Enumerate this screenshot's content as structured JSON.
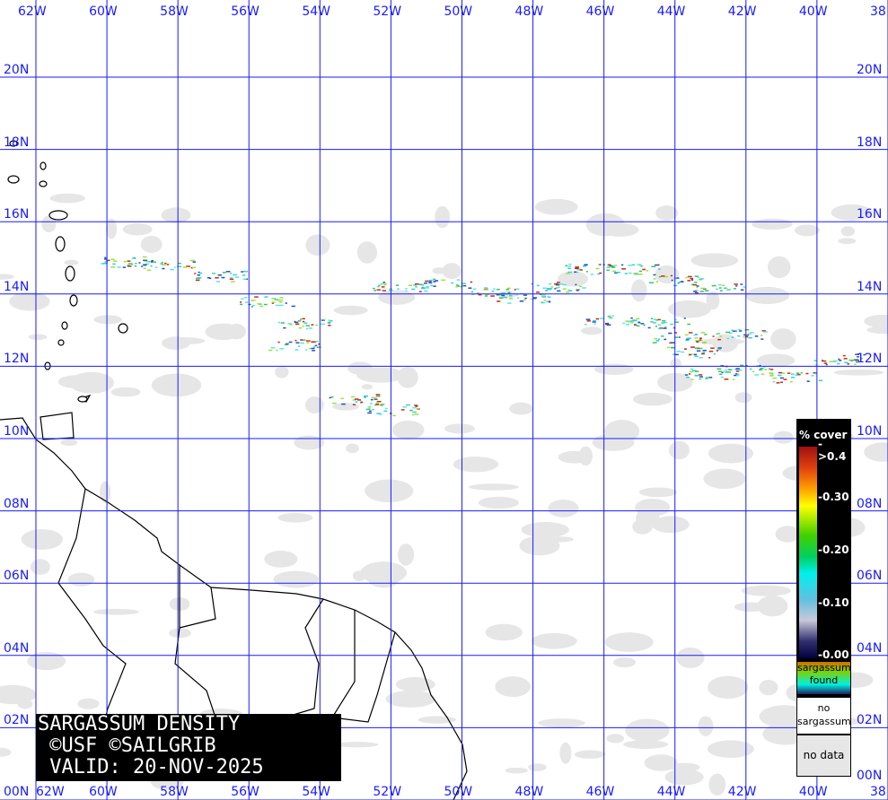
{
  "map": {
    "lon_labels": [
      "62W",
      "60W",
      "58W",
      "56W",
      "54W",
      "52W",
      "50W",
      "48W",
      "46W",
      "44W",
      "42W",
      "40W",
      "38"
    ],
    "lat_labels": [
      "20N",
      "18N",
      "16N",
      "14N",
      "12N",
      "10N",
      "08N",
      "06N",
      "04N",
      "02N",
      "00N"
    ],
    "lon_range": [
      -62,
      -38
    ],
    "lat_range": [
      0,
      20
    ],
    "grid_color": "#1a1aff",
    "sargassum_patches": [
      {
        "lat": 14.9,
        "lon": -59.5
      },
      {
        "lat": 14.8,
        "lon": -58.3
      },
      {
        "lat": 14.5,
        "lon": -56.8
      },
      {
        "lat": 13.8,
        "lon": -55.5
      },
      {
        "lat": 13.2,
        "lon": -54.5
      },
      {
        "lat": 12.6,
        "lon": -54.7
      },
      {
        "lat": 14.2,
        "lon": -51.8
      },
      {
        "lat": 14.3,
        "lon": -50.5
      },
      {
        "lat": 14.1,
        "lon": -49.2
      },
      {
        "lat": 13.9,
        "lon": -48.3
      },
      {
        "lat": 14.2,
        "lon": -47.3
      },
      {
        "lat": 14.7,
        "lon": -46.5
      },
      {
        "lat": 14.7,
        "lon": -45.2
      },
      {
        "lat": 14.4,
        "lon": -44.0
      },
      {
        "lat": 14.2,
        "lon": -42.8
      },
      {
        "lat": 13.3,
        "lon": -45.8
      },
      {
        "lat": 13.2,
        "lon": -44.4
      },
      {
        "lat": 12.8,
        "lon": -43.9
      },
      {
        "lat": 12.4,
        "lon": -43.5
      },
      {
        "lat": 11.8,
        "lon": -43.0
      },
      {
        "lat": 11.9,
        "lon": -42.0
      },
      {
        "lat": 11.7,
        "lon": -40.7
      },
      {
        "lat": 12.2,
        "lon": -39.4
      },
      {
        "lat": 10.8,
        "lon": -52.0
      },
      {
        "lat": 11.1,
        "lon": -53.0
      },
      {
        "lat": 12.9,
        "lon": -42.2
      }
    ]
  },
  "title": {
    "line1": "SARGASSUM DENSITY",
    "line2": " ©USF ©SAILGRIB",
    "line3": " VALID: 20-NOV-2025"
  },
  "legend": {
    "header": "% cover",
    "ticks": [
      "->0.4",
      "-0.30",
      "-0.20",
      "-0.10",
      "-0.00"
    ],
    "found_label": "sargassum found",
    "none_label": "no sargassum",
    "nodata_label": "no data"
  }
}
